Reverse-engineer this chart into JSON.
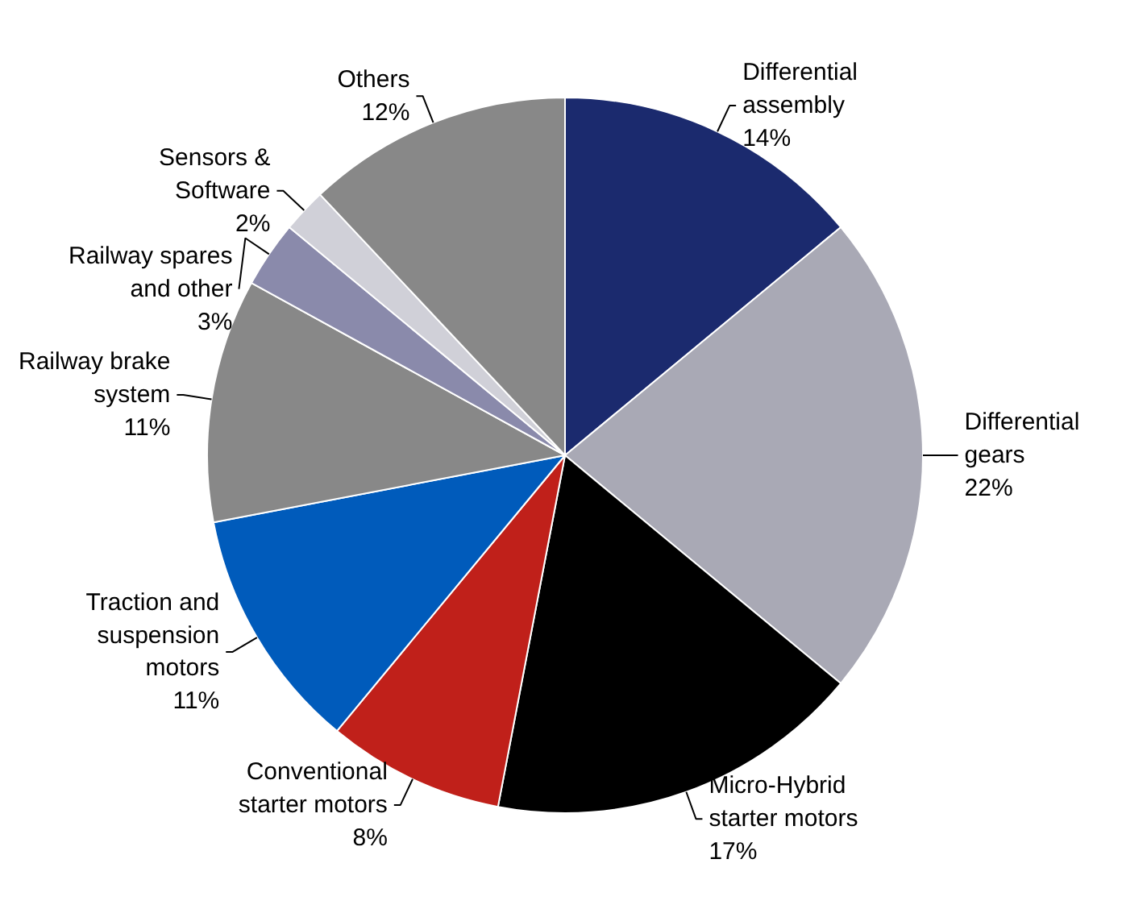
{
  "chart_data": {
    "type": "pie",
    "categories": [
      "Differential assembly",
      "Differential gears",
      "Micro-Hybrid starter motors",
      "Conventional starter motors",
      "Traction and suspension motors",
      "Railway brake system",
      "Railway spares and other",
      "Sensors & Software",
      "Others"
    ],
    "values": [
      14,
      22,
      17,
      8,
      11,
      11,
      3,
      2,
      12
    ],
    "colors": [
      "#1b2a6e",
      "#a9a9b5",
      "#000000",
      "#c0201a",
      "#005bbb",
      "#888888",
      "#8a8aab",
      "#d0d0d8",
      "#888888"
    ],
    "value_labels": [
      "14%",
      "22%",
      "17%",
      "8%",
      "11%",
      "11%",
      "3%",
      "2%",
      "12%"
    ]
  }
}
